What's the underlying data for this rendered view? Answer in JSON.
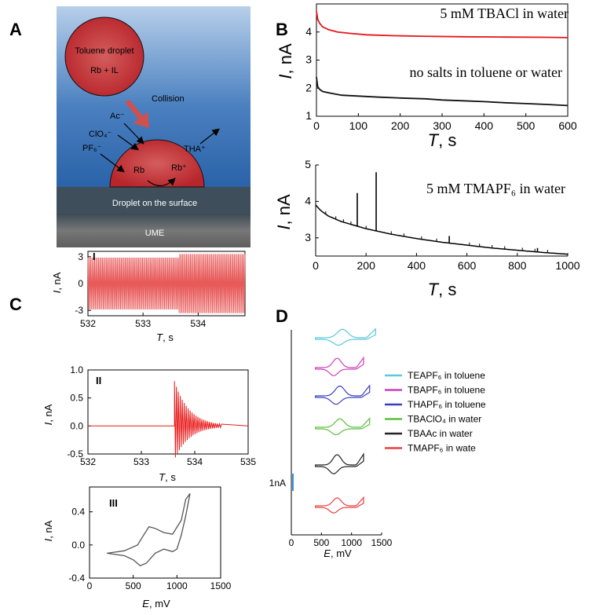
{
  "panel_letters": {
    "a": "A",
    "b": "B",
    "c": "C",
    "d": "D"
  },
  "diagram": {
    "droplet_label": "Toluene droplet",
    "droplet_content": "Rb + IL",
    "collision_label": "Collision",
    "ion_ac": "Ac⁻",
    "ion_clo4": "ClO₄⁻",
    "ion_pf6": "PF₆⁻",
    "rb_label": "Rb",
    "rb_plus_label": "Rb⁺",
    "tha_label": "THA⁺",
    "surface_label": "Droplet on the surface",
    "electrode_label": "UME",
    "colors": {
      "water_top": "#a9c6e6",
      "water_bottom": "#2e6bb0",
      "droplet": "#c8333a",
      "arrow": "#d0504e",
      "surface": "#3a4a55",
      "electrode": "#555555"
    }
  },
  "chart_data": [
    {
      "id": "B-top",
      "type": "line",
      "xlabel": "T, s",
      "ylabel": "I, nA",
      "xlim": [
        0,
        600
      ],
      "ylim": [
        1,
        5
      ],
      "xticks": [
        0,
        100,
        200,
        300,
        400,
        500,
        600
      ],
      "yticks": [
        1,
        2,
        3,
        4
      ],
      "annotations": [
        "5 mM TBACl in water",
        "no salts in toluene or water"
      ],
      "series": [
        {
          "name": "5 mM TBACl in water",
          "color": "#e8141b",
          "x": [
            0,
            3,
            8,
            15,
            30,
            50,
            80,
            120,
            180,
            250,
            350,
            450,
            550,
            600
          ],
          "y": [
            4.75,
            4.45,
            4.3,
            4.18,
            4.08,
            4.0,
            3.95,
            3.9,
            3.87,
            3.85,
            3.83,
            3.82,
            3.81,
            3.8
          ]
        },
        {
          "name": "no salts in toluene or water",
          "color": "#111111",
          "x": [
            0,
            3,
            8,
            15,
            30,
            60,
            100,
            150,
            200,
            260,
            300,
            350,
            400,
            450,
            500,
            550,
            600
          ],
          "y": [
            2.4,
            2.05,
            1.95,
            1.88,
            1.83,
            1.75,
            1.72,
            1.68,
            1.65,
            1.62,
            1.58,
            1.55,
            1.52,
            1.48,
            1.45,
            1.42,
            1.38
          ]
        }
      ]
    },
    {
      "id": "B-bottom",
      "type": "line",
      "xlabel": "T, s",
      "ylabel": "I, nA",
      "xlim": [
        0,
        1000
      ],
      "ylim": [
        2.5,
        5
      ],
      "xticks": [
        0,
        200,
        400,
        600,
        800,
        1000
      ],
      "yticks": [
        3,
        4,
        5
      ],
      "annotations": [
        "5 mM TMAPF₆ in water"
      ],
      "series": [
        {
          "name": "5 mM TMAPF₆ in water",
          "color": "#000000",
          "x": [
            0,
            20,
            50,
            100,
            150,
            200,
            300,
            400,
            500,
            600,
            700,
            800,
            900,
            1000
          ],
          "y": [
            3.9,
            3.75,
            3.6,
            3.45,
            3.35,
            3.25,
            3.1,
            2.98,
            2.88,
            2.8,
            2.72,
            2.66,
            2.6,
            2.55
          ]
        }
      ],
      "spikes": [
        {
          "x": 165,
          "y": 4.23
        },
        {
          "x": 240,
          "y": 4.8
        },
        {
          "x": 530,
          "y": 3.05
        },
        {
          "x": 880,
          "y": 2.72
        }
      ]
    },
    {
      "id": "C-I",
      "type": "line",
      "xlabel": "T, s",
      "ylabel": "I, nA",
      "xlim": [
        532,
        534.85
      ],
      "ylim": [
        -3.6,
        3.6
      ],
      "xticks": [
        532,
        533,
        534
      ],
      "yticks": [
        -3,
        0,
        3
      ],
      "label": "I",
      "series": [
        {
          "name": "",
          "color": "#e85a5a",
          "oscillation": {
            "center": 0,
            "amplitude_before": 2.9,
            "amplitude_after": 3.3,
            "change_at": 533.65
          }
        }
      ]
    },
    {
      "id": "C-II",
      "type": "line",
      "xlabel": "T, s",
      "ylabel": "I, nA",
      "xlim": [
        532,
        535
      ],
      "ylim": [
        -0.5,
        1.0
      ],
      "xticks": [
        532,
        533,
        534,
        535
      ],
      "yticks": [
        -0.5,
        0.0,
        0.5,
        1.0
      ],
      "label": "II",
      "series": [
        {
          "name": "",
          "color": "#e81a1a",
          "burst": {
            "start": 533.62,
            "peak": 0.8,
            "decay_end": 534.5
          }
        }
      ]
    },
    {
      "id": "C-III",
      "type": "line",
      "xlabel": "E, mV",
      "ylabel": "I, nA",
      "xlim": [
        0,
        1500
      ],
      "ylim": [
        -0.4,
        0.7
      ],
      "xticks": [
        0,
        500,
        1000,
        1500
      ],
      "yticks": [
        -0.4,
        0.0,
        0.4
      ],
      "label": "III",
      "series": [
        {
          "name": "",
          "color": "#555555",
          "forward": {
            "x": [
              200,
              400,
              550,
              620,
              680,
              750,
              850,
              950,
              1050,
              1100,
              1150
            ],
            "y": [
              -0.1,
              -0.07,
              0.0,
              0.12,
              0.22,
              0.2,
              0.15,
              0.13,
              0.3,
              0.55,
              0.62
            ]
          },
          "reverse": {
            "x": [
              1150,
              1100,
              1050,
              1000,
              950,
              850,
              750,
              650,
              580,
              500,
              400,
              200
            ],
            "y": [
              0.62,
              0.35,
              0.12,
              -0.05,
              -0.08,
              -0.05,
              -0.1,
              -0.22,
              -0.25,
              -0.18,
              -0.13,
              -0.1
            ]
          }
        }
      ]
    },
    {
      "id": "D",
      "type": "line",
      "xlabel": "E, mV",
      "xlim": [
        0,
        1500
      ],
      "xticks": [
        0,
        500,
        1000,
        1500
      ],
      "scale_bar_label": "1nA",
      "scale_bar_color": "#3b8ede",
      "series": [
        {
          "name": "TEAPF₆ in toluene",
          "color": "#5bc8dc",
          "range": [
            400,
            1400
          ]
        },
        {
          "name": "TBAPF₆ in toluene",
          "color": "#cc3fbe",
          "range": [
            400,
            1200
          ]
        },
        {
          "name": "THAPF₆ in toluene",
          "color": "#3a3fbf",
          "range": [
            400,
            1300
          ]
        },
        {
          "name": "TBAClO₄ in water",
          "color": "#5bbf3f",
          "range": [
            400,
            1300
          ]
        },
        {
          "name": "TBAAc in water",
          "color": "#222222",
          "range": [
            400,
            1200
          ]
        },
        {
          "name": "TMAPF₆ in wate",
          "color": "#e84040",
          "range": [
            400,
            1200
          ]
        }
      ]
    }
  ]
}
